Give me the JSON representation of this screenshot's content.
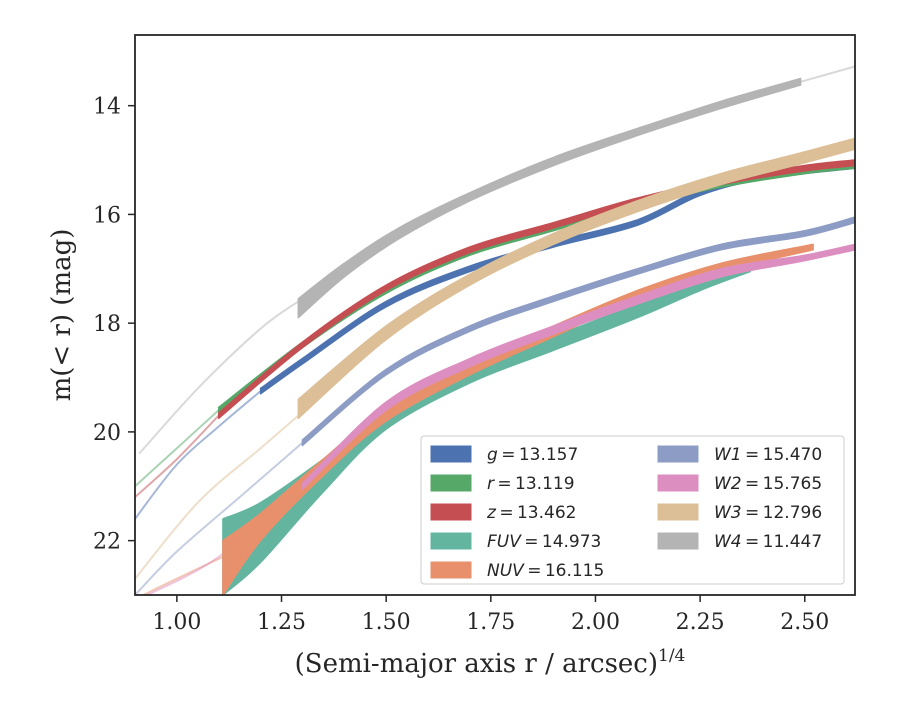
{
  "chart_data": {
    "type": "line",
    "xlabel": "(Semi-major axis r / arcsec)",
    "xlabel_exponent": "1/4",
    "ylabel": "m(< r) (mag)",
    "xlim": [
      0.9,
      2.62
    ],
    "ylim": [
      23.0,
      12.7
    ],
    "y_inverted": true,
    "grid": false,
    "legend_position": "lower-right",
    "x_ticks": [
      "1.00",
      "1.25",
      "1.50",
      "1.75",
      "2.00",
      "2.25",
      "2.50"
    ],
    "x_tick_values": [
      1.0,
      1.25,
      1.5,
      1.75,
      2.0,
      2.25,
      2.5
    ],
    "y_ticks": [
      "14",
      "16",
      "18",
      "20",
      "22"
    ],
    "y_tick_values": [
      14,
      16,
      18,
      20,
      22
    ],
    "series": [
      {
        "name": "g",
        "legend_label": "g = 13.157",
        "color": "#4c72b0",
        "extrap": [
          [
            0.9,
            21.6
          ],
          [
            1.0,
            20.6
          ],
          [
            1.1,
            19.9
          ],
          [
            1.2,
            19.25
          ]
        ],
        "band": [
          [
            1.2,
            19.3,
            19.2
          ],
          [
            1.3,
            18.75,
            18.65
          ],
          [
            1.5,
            17.7,
            17.6
          ],
          [
            1.7,
            17.05,
            16.95
          ],
          [
            1.9,
            16.6,
            16.5
          ],
          [
            2.1,
            16.2,
            16.1
          ],
          [
            2.25,
            15.65,
            15.55
          ],
          [
            2.4,
            15.35,
            15.25
          ],
          [
            2.62,
            15.15,
            15.05
          ]
        ]
      },
      {
        "name": "r",
        "legend_label": "r = 13.119",
        "color": "#55a868",
        "extrap": [
          [
            0.9,
            21.0
          ],
          [
            1.0,
            20.3
          ],
          [
            1.1,
            19.6
          ]
        ],
        "band": [
          [
            1.1,
            19.65,
            19.55
          ],
          [
            1.3,
            18.45,
            18.35
          ],
          [
            1.5,
            17.45,
            17.35
          ],
          [
            1.7,
            16.75,
            16.65
          ],
          [
            1.9,
            16.3,
            16.2
          ],
          [
            2.1,
            15.85,
            15.75
          ],
          [
            2.3,
            15.5,
            15.4
          ],
          [
            2.5,
            15.25,
            15.15
          ],
          [
            2.62,
            15.15,
            15.05
          ]
        ]
      },
      {
        "name": "z",
        "legend_label": "z = 13.462",
        "color": "#c44e52",
        "extrap": [
          [
            0.9,
            21.2
          ],
          [
            1.0,
            20.5
          ],
          [
            1.1,
            19.7
          ]
        ],
        "band": [
          [
            1.1,
            19.75,
            19.65
          ],
          [
            1.3,
            18.45,
            18.35
          ],
          [
            1.5,
            17.4,
            17.3
          ],
          [
            1.7,
            16.7,
            16.6
          ],
          [
            1.9,
            16.25,
            16.15
          ],
          [
            2.1,
            15.8,
            15.7
          ],
          [
            2.3,
            15.45,
            15.35
          ],
          [
            2.5,
            15.2,
            15.1
          ],
          [
            2.62,
            15.1,
            15.0
          ]
        ]
      },
      {
        "name": "FUV",
        "legend_label": "FUV = 14.973",
        "color": "#64b5a0",
        "extrap": [],
        "band": [
          [
            1.11,
            23.0,
            21.6
          ],
          [
            1.2,
            22.4,
            21.3
          ],
          [
            1.35,
            21.1,
            20.5
          ],
          [
            1.5,
            19.95,
            19.6
          ],
          [
            1.7,
            19.1,
            18.85
          ],
          [
            1.9,
            18.5,
            18.25
          ],
          [
            2.1,
            17.9,
            17.65
          ],
          [
            2.25,
            17.4,
            17.2
          ],
          [
            2.37,
            17.05,
            16.95
          ]
        ]
      },
      {
        "name": "NUV",
        "legend_label": "NUV = 16.115",
        "color": "#e8906c",
        "extrap": [
          [
            0.92,
            23.0
          ],
          [
            1.0,
            22.7
          ],
          [
            1.11,
            22.3
          ]
        ],
        "band": [
          [
            1.11,
            23.0,
            22.0
          ],
          [
            1.2,
            22.0,
            21.5
          ],
          [
            1.35,
            20.8,
            20.5
          ],
          [
            1.5,
            19.8,
            19.55
          ],
          [
            1.7,
            18.95,
            18.75
          ],
          [
            1.9,
            18.25,
            18.05
          ],
          [
            2.1,
            17.55,
            17.4
          ],
          [
            2.3,
            17.05,
            16.9
          ],
          [
            2.52,
            16.65,
            16.55
          ]
        ]
      },
      {
        "name": "W1",
        "legend_label": "W1 = 15.470",
        "color": "#8c9cc4",
        "extrap": [
          [
            0.9,
            23.0
          ],
          [
            1.0,
            22.2
          ],
          [
            1.15,
            21.2
          ],
          [
            1.3,
            20.2
          ]
        ],
        "band": [
          [
            1.3,
            20.25,
            20.15
          ],
          [
            1.5,
            18.95,
            18.85
          ],
          [
            1.7,
            18.15,
            18.05
          ],
          [
            1.9,
            17.6,
            17.5
          ],
          [
            2.1,
            17.1,
            17.0
          ],
          [
            2.3,
            16.65,
            16.55
          ],
          [
            2.5,
            16.4,
            16.3
          ],
          [
            2.62,
            16.15,
            16.05
          ]
        ]
      },
      {
        "name": "W2",
        "legend_label": "W2 = 15.765",
        "color": "#dd8ec0",
        "extrap": [
          [
            0.93,
            23.0
          ],
          [
            1.1,
            22.3
          ],
          [
            1.3,
            21.0
          ]
        ],
        "band": [
          [
            1.3,
            21.05,
            20.95
          ],
          [
            1.5,
            19.6,
            19.45
          ],
          [
            1.7,
            18.8,
            18.65
          ],
          [
            1.9,
            18.2,
            18.05
          ],
          [
            2.1,
            17.65,
            17.5
          ],
          [
            2.3,
            17.15,
            17.0
          ],
          [
            2.5,
            16.85,
            16.75
          ],
          [
            2.62,
            16.65,
            16.55
          ]
        ]
      },
      {
        "name": "W3",
        "legend_label": "W3 = 12.796",
        "color": "#dcbf96",
        "extrap": [
          [
            0.9,
            22.7
          ],
          [
            1.05,
            21.3
          ],
          [
            1.2,
            20.3
          ],
          [
            1.29,
            19.7
          ]
        ],
        "band": [
          [
            1.29,
            19.75,
            19.4
          ],
          [
            1.5,
            18.3,
            18.05
          ],
          [
            1.7,
            17.3,
            17.1
          ],
          [
            1.9,
            16.55,
            16.35
          ],
          [
            2.1,
            15.95,
            15.75
          ],
          [
            2.3,
            15.45,
            15.25
          ],
          [
            2.5,
            15.05,
            14.85
          ],
          [
            2.62,
            14.8,
            14.6
          ]
        ]
      },
      {
        "name": "W4",
        "legend_label": "W4 = 11.447",
        "color": "#b4b4b4",
        "extrap": [
          [
            0.91,
            20.4
          ],
          [
            1.05,
            19.2
          ],
          [
            1.2,
            18.1
          ],
          [
            1.29,
            17.6
          ]
        ],
        "band": [
          [
            1.29,
            17.9,
            17.55
          ],
          [
            1.4,
            17.15,
            16.9
          ],
          [
            1.53,
            16.45,
            16.25
          ],
          [
            1.7,
            15.75,
            15.6
          ],
          [
            1.9,
            15.1,
            14.95
          ],
          [
            2.1,
            14.55,
            14.42
          ],
          [
            2.3,
            14.05,
            13.92
          ],
          [
            2.49,
            13.62,
            13.5
          ]
        ],
        "extrap_after": [
          [
            2.49,
            13.56
          ],
          [
            2.62,
            13.28
          ]
        ]
      }
    ]
  }
}
